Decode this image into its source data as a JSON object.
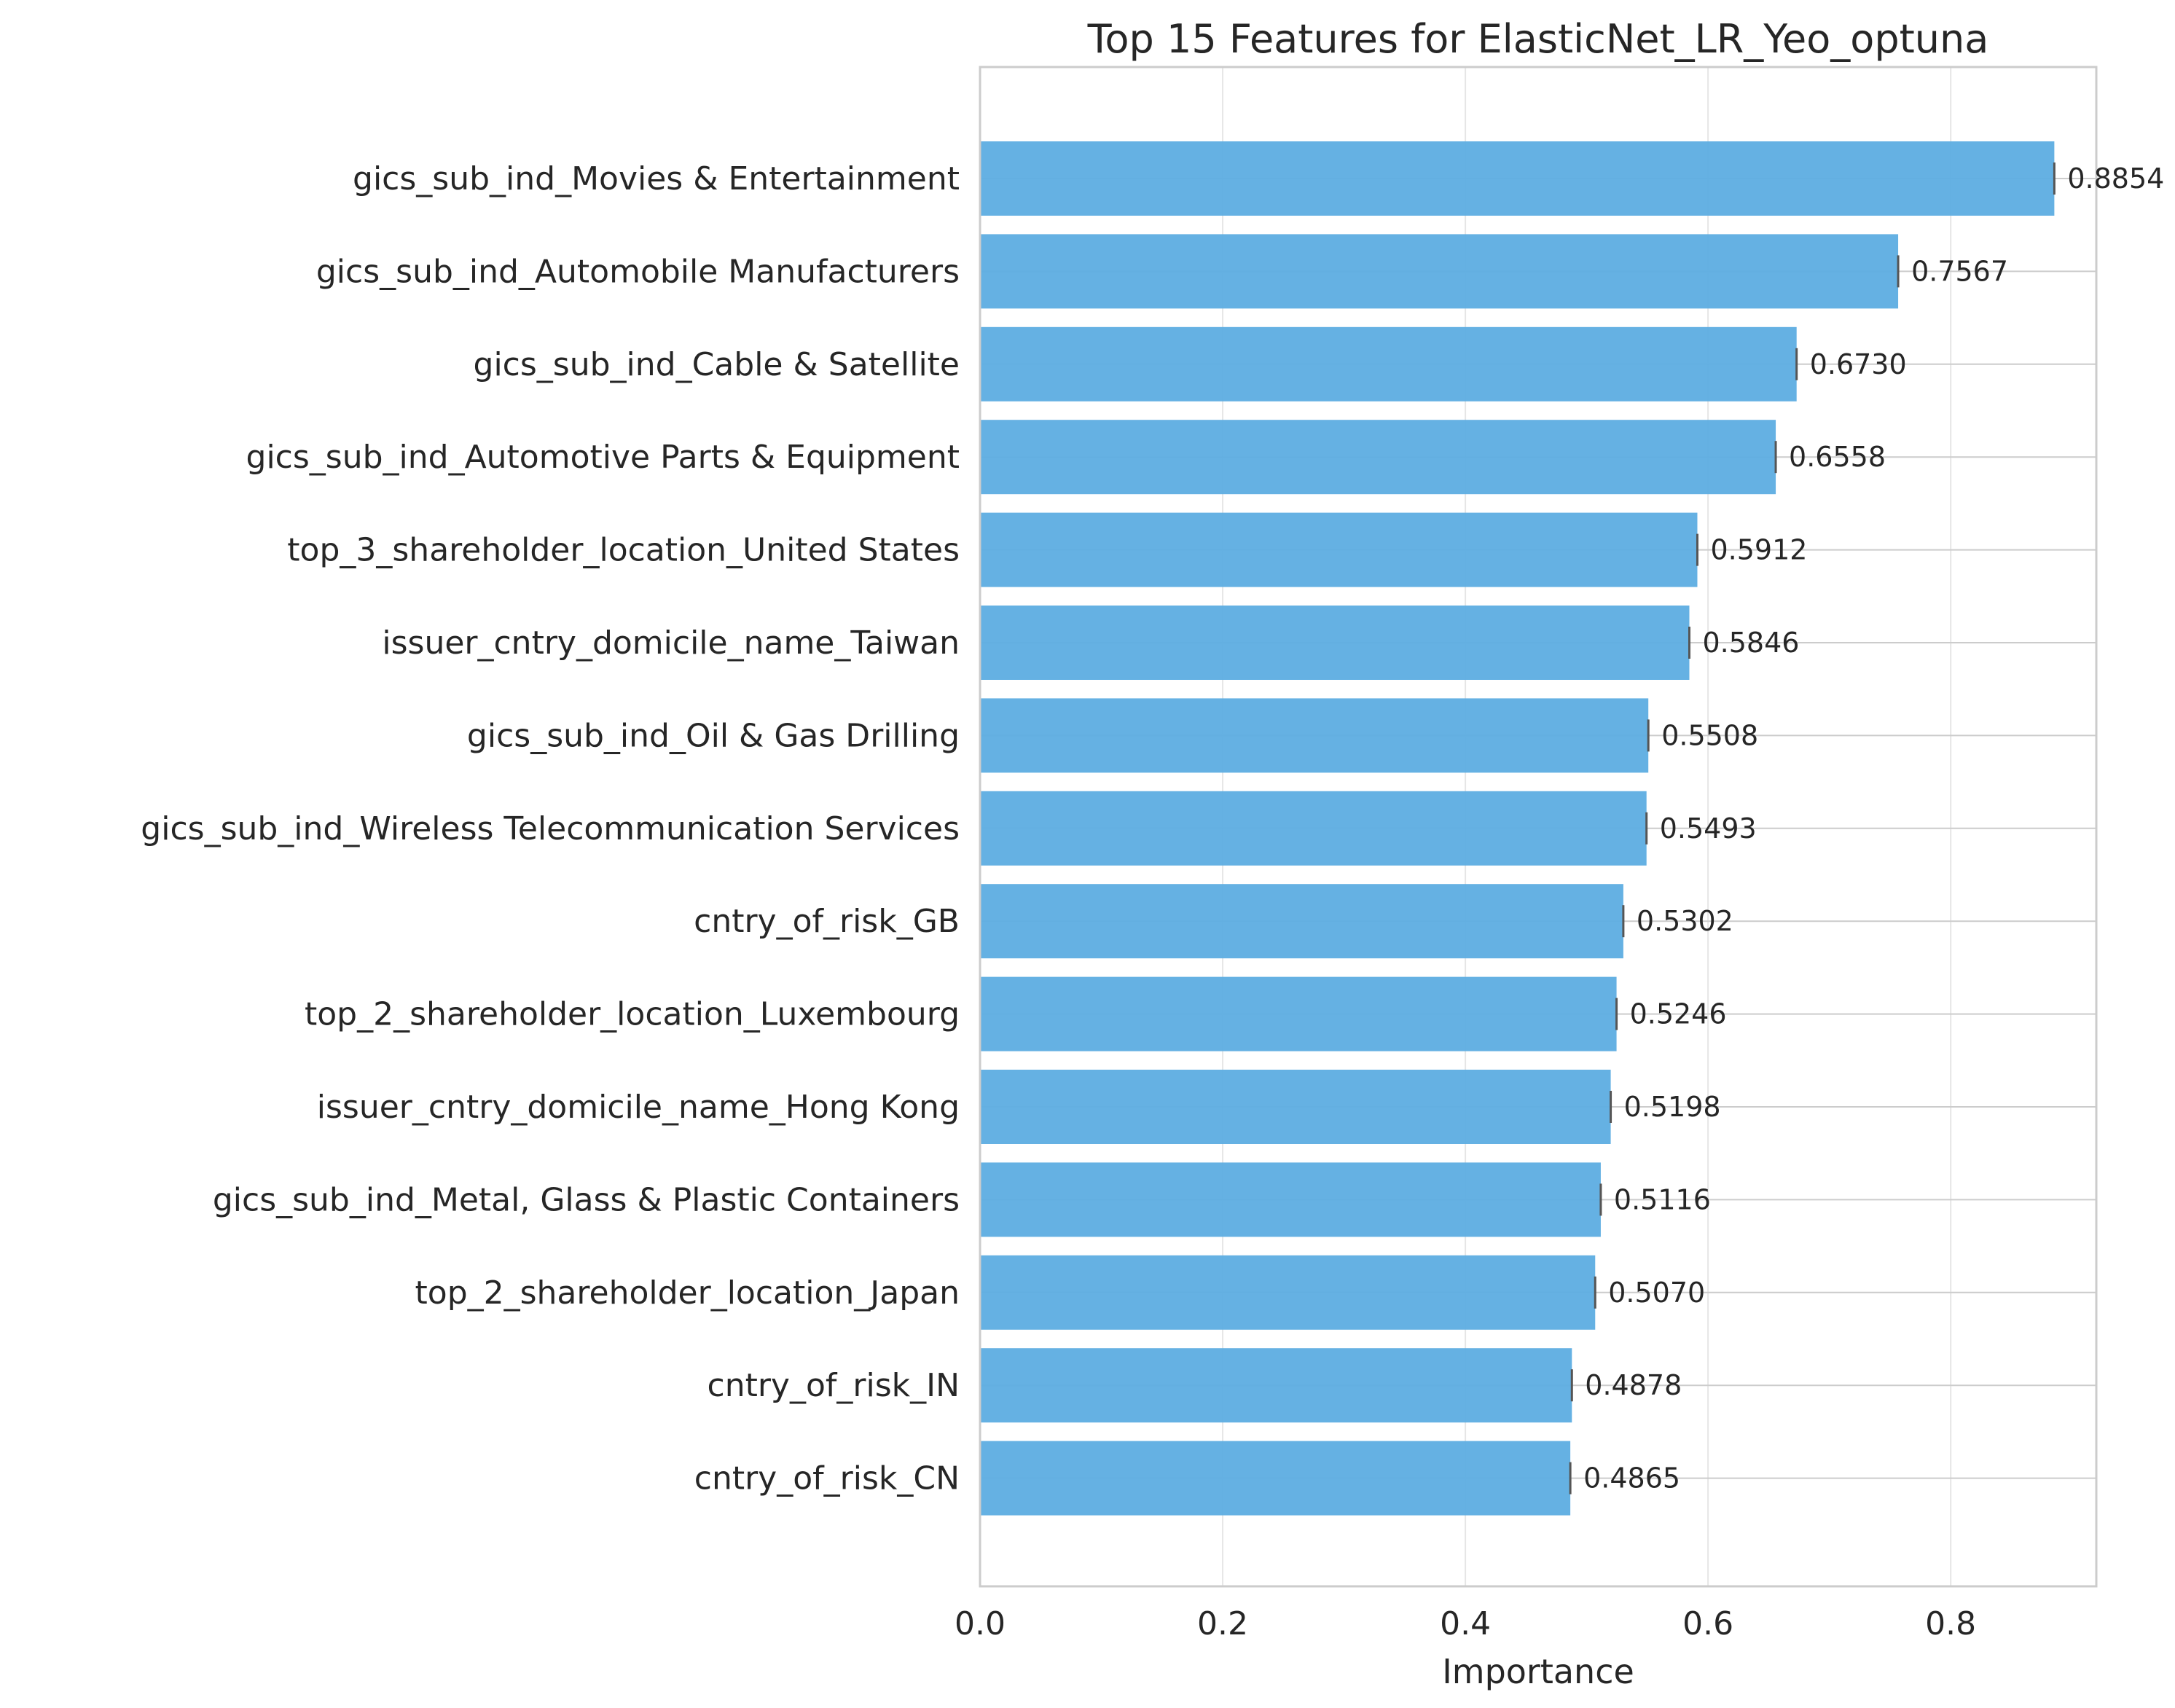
{
  "chart_data": {
    "type": "bar",
    "orientation": "horizontal",
    "title": "Top 15 Features for ElasticNet_LR_Yeo_optuna",
    "xlabel": "Importance",
    "ylabel": "",
    "xlim": [
      0,
      0.92
    ],
    "xticks": [
      "0.0",
      "0.2",
      "0.4",
      "0.6",
      "0.8"
    ],
    "xtick_values": [
      0,
      0.2,
      0.4,
      0.6,
      0.8
    ],
    "grid": true,
    "bar_color": "#5DADE2",
    "categories": [
      "gics_sub_ind_Movies & Entertainment",
      "gics_sub_ind_Automobile Manufacturers",
      "gics_sub_ind_Cable & Satellite",
      "gics_sub_ind_Automotive Parts & Equipment",
      "top_3_shareholder_location_United States",
      "issuer_cntry_domicile_name_Taiwan",
      "gics_sub_ind_Oil & Gas Drilling",
      "gics_sub_ind_Wireless Telecommunication Services",
      "cntry_of_risk_GB",
      "top_2_shareholder_location_Luxembourg",
      "issuer_cntry_domicile_name_Hong Kong",
      "gics_sub_ind_Metal, Glass & Plastic Containers",
      "top_2_shareholder_location_Japan",
      "cntry_of_risk_IN",
      "cntry_of_risk_CN"
    ],
    "values": [
      0.8854,
      0.7567,
      0.673,
      0.6558,
      0.5912,
      0.5846,
      0.5508,
      0.5493,
      0.5302,
      0.5246,
      0.5198,
      0.5116,
      0.507,
      0.4878,
      0.4865
    ],
    "value_labels": [
      "0.8854",
      "0.7567",
      "0.6730",
      "0.6558",
      "0.5912",
      "0.5846",
      "0.5508",
      "0.5493",
      "0.5302",
      "0.5246",
      "0.5198",
      "0.5116",
      "0.5070",
      "0.4878",
      "0.4865"
    ]
  }
}
